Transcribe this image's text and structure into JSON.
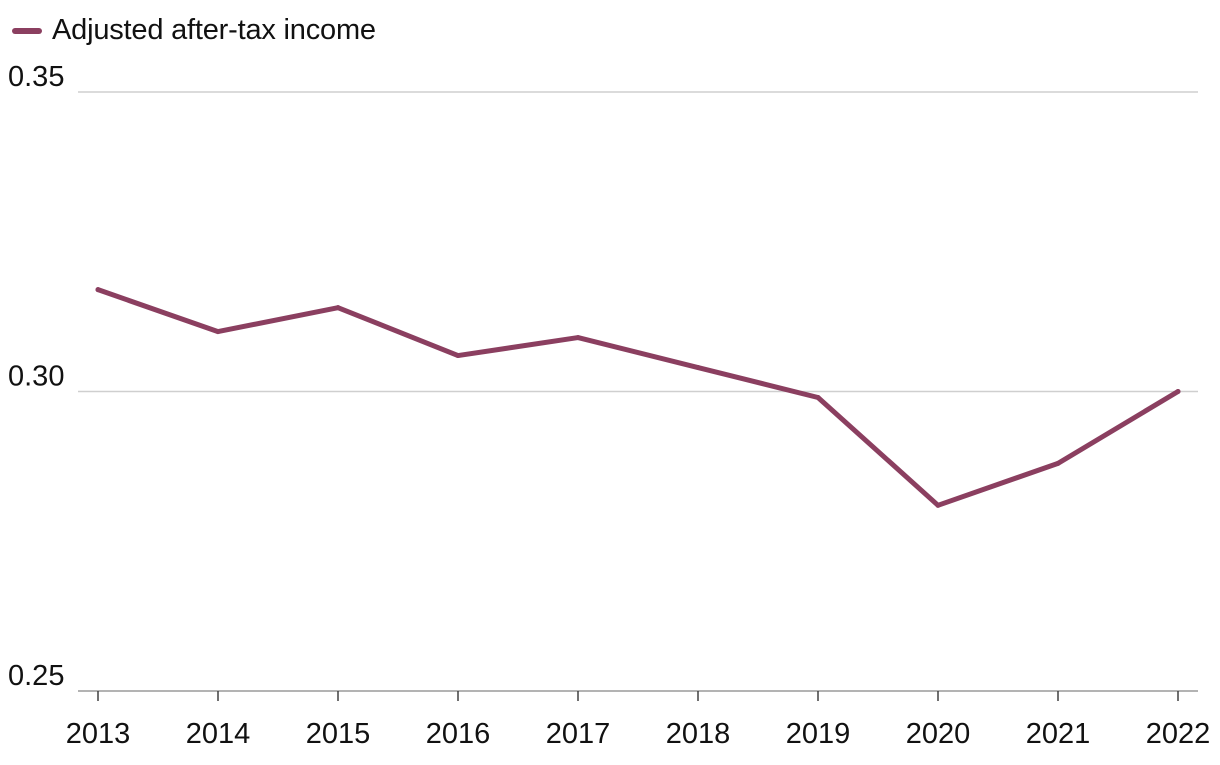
{
  "chart_data": {
    "type": "line",
    "title": "",
    "xlabel": "",
    "ylabel": "",
    "categories": [
      "2013",
      "2014",
      "2015",
      "2016",
      "2017",
      "2018",
      "2019",
      "2020",
      "2021",
      "2022"
    ],
    "series": [
      {
        "name": "Adjusted after-tax income",
        "color": "#8b3f60",
        "values": [
          0.317,
          0.31,
          0.314,
          0.306,
          0.309,
          0.304,
          0.299,
          0.281,
          0.288,
          0.3
        ]
      }
    ],
    "ylim": [
      0.25,
      0.35
    ],
    "yticks": [
      0.25,
      0.3,
      0.35
    ],
    "ytick_labels": [
      "0.25",
      "0.30",
      "0.35"
    ],
    "grid": true,
    "legend_position": "top-left"
  }
}
